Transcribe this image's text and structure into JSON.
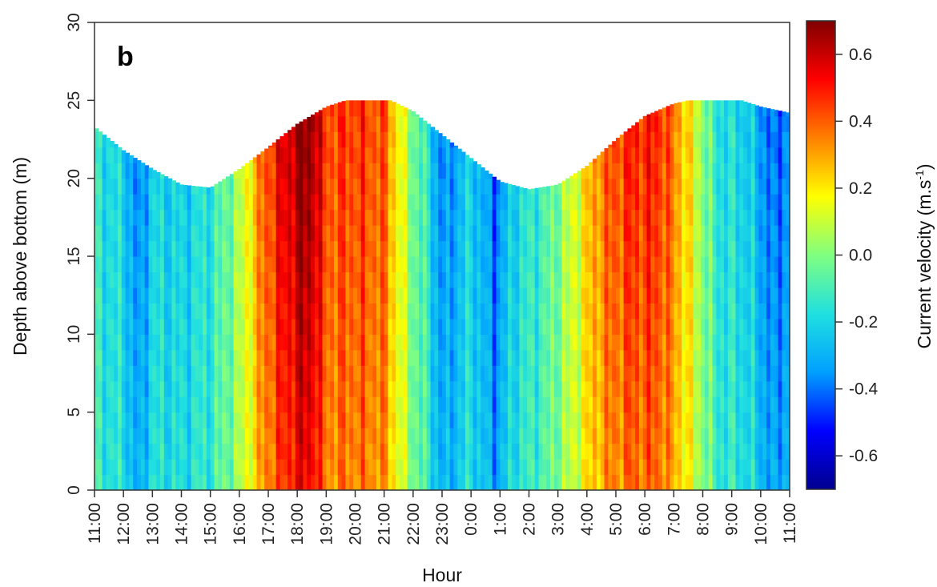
{
  "chart_data": {
    "type": "heatmap",
    "panel_label": "b",
    "xlabel": "Hour",
    "ylabel": "Depth above bottom (m)",
    "colorbar_label": "Current velocity (m.s",
    "colorbar_label_sup": "-1",
    "colorbar_label_end": ")",
    "x_ticks": [
      "11:00",
      "12:00",
      "13:00",
      "14:00",
      "15:00",
      "16:00",
      "17:00",
      "18:00",
      "19:00",
      "20:00",
      "21:00",
      "22:00",
      "23:00",
      "0:00",
      "1:00",
      "2:00",
      "3:00",
      "4:00",
      "5:00",
      "6:00",
      "7:00",
      "8:00",
      "9:00",
      "10:00",
      "11:00"
    ],
    "y_ticks": [
      "0",
      "5",
      "10",
      "15",
      "20",
      "25",
      "30"
    ],
    "y_tick_values": [
      0,
      5,
      10,
      15,
      20,
      25,
      30
    ],
    "ylim": [
      0,
      30
    ],
    "x_range_hours": [
      0,
      24
    ],
    "colorbar_ticks": [
      "-0.6",
      "-0.4",
      "-0.2",
      "0.0",
      "0.2",
      "0.4",
      "0.6"
    ],
    "colorbar_tick_values": [
      -0.6,
      -0.4,
      -0.2,
      0.0,
      0.2,
      0.4,
      0.6
    ],
    "colorbar_range": [
      -0.7,
      0.7
    ],
    "colormap": [
      "#00008f",
      "#0000ff",
      "#00a0ff",
      "#20e0e0",
      "#80ff80",
      "#ffff00",
      "#ff8000",
      "#ff0000",
      "#800000"
    ],
    "surface_height_m": [
      {
        "hour": 0.0,
        "depth": 23.3
      },
      {
        "hour": 1.0,
        "depth": 21.8
      },
      {
        "hour": 2.0,
        "depth": 20.6
      },
      {
        "hour": 3.0,
        "depth": 19.6
      },
      {
        "hour": 4.0,
        "depth": 19.4
      },
      {
        "hour": 5.0,
        "depth": 20.6
      },
      {
        "hour": 6.0,
        "depth": 22.0
      },
      {
        "hour": 7.0,
        "depth": 23.5
      },
      {
        "hour": 8.0,
        "depth": 24.6
      },
      {
        "hour": 9.0,
        "depth": 25.2
      },
      {
        "hour": 10.0,
        "depth": 25.2
      },
      {
        "hour": 11.0,
        "depth": 24.3
      },
      {
        "hour": 12.0,
        "depth": 22.8
      },
      {
        "hour": 13.0,
        "depth": 21.3
      },
      {
        "hour": 14.0,
        "depth": 19.8
      },
      {
        "hour": 15.0,
        "depth": 19.3
      },
      {
        "hour": 16.0,
        "depth": 19.6
      },
      {
        "hour": 17.0,
        "depth": 20.8
      },
      {
        "hour": 18.0,
        "depth": 22.5
      },
      {
        "hour": 19.0,
        "depth": 24.0
      },
      {
        "hour": 20.0,
        "depth": 24.8
      },
      {
        "hour": 21.0,
        "depth": 25.2
      },
      {
        "hour": 22.0,
        "depth": 25.2
      },
      {
        "hour": 23.0,
        "depth": 24.6
      },
      {
        "hour": 24.0,
        "depth": 24.2
      }
    ],
    "velocity_profile_by_hour": [
      {
        "hour": 0.0,
        "velocity": -0.15
      },
      {
        "hour": 1.0,
        "velocity": -0.2
      },
      {
        "hour": 1.5,
        "velocity": -0.4
      },
      {
        "hour": 2.0,
        "velocity": -0.2
      },
      {
        "hour": 3.0,
        "velocity": -0.22
      },
      {
        "hour": 4.0,
        "velocity": -0.15
      },
      {
        "hour": 5.0,
        "velocity": 0.05
      },
      {
        "hour": 5.5,
        "velocity": 0.25
      },
      {
        "hour": 6.0,
        "velocity": 0.42
      },
      {
        "hour": 7.0,
        "velocity": 0.62
      },
      {
        "hour": 7.5,
        "velocity": 0.65
      },
      {
        "hour": 8.0,
        "velocity": 0.4
      },
      {
        "hour": 9.0,
        "velocity": 0.42
      },
      {
        "hour": 10.0,
        "velocity": 0.38
      },
      {
        "hour": 10.8,
        "velocity": 0.05
      },
      {
        "hour": 11.5,
        "velocity": -0.15
      },
      {
        "hour": 12.0,
        "velocity": -0.38
      },
      {
        "hour": 13.0,
        "velocity": -0.2
      },
      {
        "hour": 13.8,
        "velocity": -0.4
      },
      {
        "hour": 14.5,
        "velocity": -0.2
      },
      {
        "hour": 15.5,
        "velocity": -0.1
      },
      {
        "hour": 16.5,
        "velocity": 0.1
      },
      {
        "hour": 17.5,
        "velocity": 0.35
      },
      {
        "hour": 18.5,
        "velocity": 0.45
      },
      {
        "hour": 19.5,
        "velocity": 0.45
      },
      {
        "hour": 20.5,
        "velocity": 0.2
      },
      {
        "hour": 21.5,
        "velocity": -0.15
      },
      {
        "hour": 22.5,
        "velocity": -0.2
      },
      {
        "hour": 23.5,
        "velocity": -0.42
      },
      {
        "hour": 24.0,
        "velocity": -0.3
      }
    ]
  }
}
